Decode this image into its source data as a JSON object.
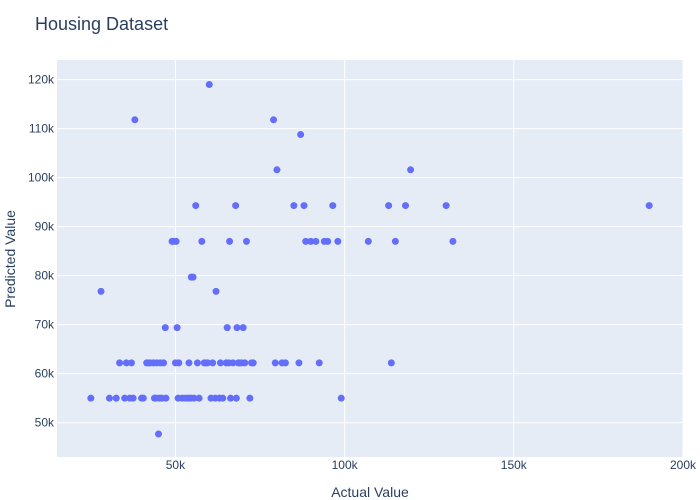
{
  "chart_data": {
    "type": "scatter",
    "title": "Housing Dataset",
    "xlabel": "Actual Value",
    "ylabel": "Predicted Value",
    "xlim": [
      15000,
      200000
    ],
    "ylim": [
      43000,
      124000
    ],
    "grid": true,
    "x_ticks": [
      {
        "value": 50000,
        "label": "50k"
      },
      {
        "value": 100000,
        "label": "100k"
      },
      {
        "value": 150000,
        "label": "150k"
      },
      {
        "value": 200000,
        "label": "200k"
      }
    ],
    "y_ticks": [
      {
        "value": 50000,
        "label": "50k"
      },
      {
        "value": 60000,
        "label": "60k"
      },
      {
        "value": 70000,
        "label": "70k"
      },
      {
        "value": 80000,
        "label": "80k"
      },
      {
        "value": 90000,
        "label": "90k"
      },
      {
        "value": 100000,
        "label": "100k"
      },
      {
        "value": 110000,
        "label": "110k"
      },
      {
        "value": 120000,
        "label": "120k"
      }
    ],
    "marker_color": "#636efa",
    "plot_bg": "#e5ecf6",
    "points": [
      [
        25000,
        55000
      ],
      [
        28000,
        76800
      ],
      [
        30500,
        55000
      ],
      [
        32500,
        55000
      ],
      [
        33500,
        62200
      ],
      [
        35000,
        55000
      ],
      [
        35500,
        62200
      ],
      [
        36500,
        55000
      ],
      [
        37000,
        62200
      ],
      [
        37500,
        55000
      ],
      [
        38000,
        111800
      ],
      [
        40000,
        55000
      ],
      [
        40500,
        55000
      ],
      [
        41500,
        62200
      ],
      [
        42000,
        62200
      ],
      [
        42500,
        62200
      ],
      [
        43500,
        62200
      ],
      [
        43800,
        55000
      ],
      [
        44200,
        55000
      ],
      [
        44500,
        62200
      ],
      [
        45000,
        47700
      ],
      [
        45200,
        55000
      ],
      [
        45500,
        62200
      ],
      [
        46000,
        55000
      ],
      [
        46500,
        62200
      ],
      [
        47000,
        69400
      ],
      [
        47200,
        55000
      ],
      [
        49000,
        87000
      ],
      [
        49500,
        87000
      ],
      [
        50000,
        62200
      ],
      [
        50200,
        87000
      ],
      [
        50500,
        69400
      ],
      [
        50800,
        55000
      ],
      [
        51000,
        62200
      ],
      [
        52000,
        55000
      ],
      [
        53000,
        55000
      ],
      [
        53800,
        55000
      ],
      [
        54000,
        62200
      ],
      [
        54500,
        55000
      ],
      [
        54700,
        79700
      ],
      [
        55200,
        79700
      ],
      [
        55500,
        55000
      ],
      [
        56000,
        94300
      ],
      [
        56500,
        62200
      ],
      [
        57000,
        55000
      ],
      [
        57800,
        87000
      ],
      [
        58500,
        62200
      ],
      [
        59000,
        62200
      ],
      [
        59500,
        62200
      ],
      [
        60000,
        119000
      ],
      [
        60500,
        55000
      ],
      [
        61000,
        62200
      ],
      [
        61800,
        55000
      ],
      [
        62000,
        76800
      ],
      [
        63000,
        55000
      ],
      [
        63300,
        62200
      ],
      [
        64000,
        55000
      ],
      [
        65000,
        62200
      ],
      [
        65300,
        69400
      ],
      [
        65800,
        62200
      ],
      [
        66000,
        87000
      ],
      [
        66300,
        55000
      ],
      [
        67000,
        62200
      ],
      [
        67800,
        94300
      ],
      [
        68000,
        55000
      ],
      [
        68200,
        69400
      ],
      [
        68600,
        62200
      ],
      [
        69000,
        62200
      ],
      [
        69500,
        62200
      ],
      [
        70000,
        69400
      ],
      [
        70500,
        62200
      ],
      [
        71000,
        87000
      ],
      [
        72000,
        55000
      ],
      [
        72500,
        62200
      ],
      [
        73000,
        62200
      ],
      [
        79000,
        111800
      ],
      [
        79500,
        62200
      ],
      [
        80000,
        101600
      ],
      [
        81500,
        62200
      ],
      [
        82500,
        62200
      ],
      [
        85000,
        94300
      ],
      [
        86500,
        62200
      ],
      [
        87000,
        108800
      ],
      [
        88000,
        94300
      ],
      [
        88500,
        87000
      ],
      [
        90000,
        87000
      ],
      [
        91500,
        87000
      ],
      [
        92500,
        62200
      ],
      [
        94000,
        87000
      ],
      [
        95000,
        87000
      ],
      [
        96500,
        94300
      ],
      [
        98000,
        87000
      ],
      [
        99000,
        55000
      ],
      [
        107000,
        87000
      ],
      [
        113000,
        94300
      ],
      [
        113800,
        62200
      ],
      [
        115000,
        87000
      ],
      [
        118000,
        94300
      ],
      [
        119500,
        101600
      ],
      [
        130000,
        94300
      ],
      [
        132000,
        87000
      ],
      [
        190000,
        94300
      ]
    ]
  }
}
